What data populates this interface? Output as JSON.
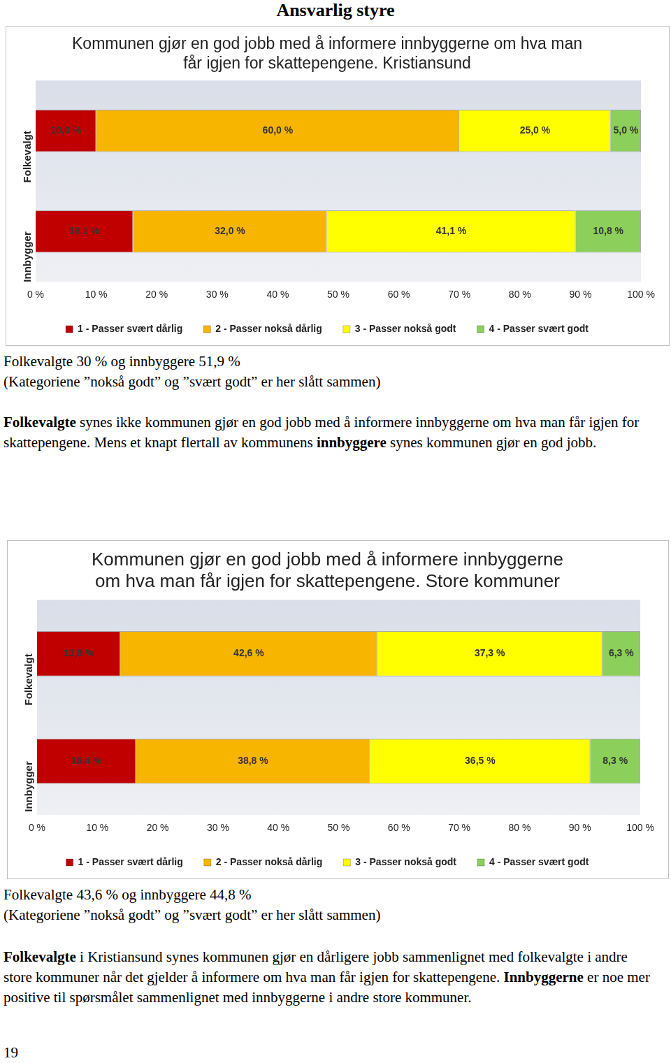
{
  "header": "Ansvarlig styre",
  "chart_data": [
    {
      "type": "bar",
      "orientation": "horizontal",
      "stacked": true,
      "data_labels": true,
      "legend": "bottom",
      "grid": false,
      "title": [
        "Kommunen gjør en god jobb med å informere innbyggerne om hva man",
        "får igjen for skattepengene. Kristiansund"
      ],
      "categories": [
        "Folkevalgt",
        "Innbygger"
      ],
      "xlim": [
        0,
        100
      ],
      "xticks": [
        {
          "value": 0,
          "label": "0 %"
        },
        {
          "value": 10,
          "label": "10 %"
        },
        {
          "value": 20,
          "label": "20 %"
        },
        {
          "value": 30,
          "label": "30 %"
        },
        {
          "value": 40,
          "label": "40 %"
        },
        {
          "value": 50,
          "label": "50 %"
        },
        {
          "value": 60,
          "label": "60 %"
        },
        {
          "value": 70,
          "label": "70 %"
        },
        {
          "value": 80,
          "label": "80 %"
        },
        {
          "value": 90,
          "label": "90 %"
        },
        {
          "value": 100,
          "label": "100 %"
        }
      ],
      "series": [
        {
          "name": "1 - Passer svært dårlig",
          "color": "#c00000",
          "values": [
            10.0,
            16.1
          ],
          "value_labels": [
            "10,0 %",
            "16,1 %"
          ]
        },
        {
          "name": "2 - Passer nokså dårlig",
          "color": "#f7b500",
          "values": [
            60.0,
            32.0
          ],
          "value_labels": [
            "60,0 %",
            "32,0 %"
          ]
        },
        {
          "name": "3 - Passer nokså godt",
          "color": "#ffff00",
          "values": [
            25.0,
            41.1
          ],
          "value_labels": [
            "25,0 %",
            "41,1 %"
          ]
        },
        {
          "name": "4 - Passer svært godt",
          "color": "#8ccf5a",
          "values": [
            5.0,
            10.8
          ],
          "value_labels": [
            "5,0 %",
            "10,8 %"
          ]
        }
      ]
    },
    {
      "type": "bar",
      "orientation": "horizontal",
      "stacked": true,
      "data_labels": true,
      "legend": "bottom",
      "grid": false,
      "title": [
        "Kommunen gjør en god jobb med å informere innbyggerne",
        "om hva man får igjen for skattepengene. Store kommuner"
      ],
      "categories": [
        "Folkevalgt",
        "Innbygger"
      ],
      "xlim": [
        0,
        100
      ],
      "xticks": [
        {
          "value": 0,
          "label": "0 %"
        },
        {
          "value": 10,
          "label": "10 %"
        },
        {
          "value": 20,
          "label": "20 %"
        },
        {
          "value": 30,
          "label": "30 %"
        },
        {
          "value": 40,
          "label": "40 %"
        },
        {
          "value": 50,
          "label": "50 %"
        },
        {
          "value": 60,
          "label": "60 %"
        },
        {
          "value": 70,
          "label": "70 %"
        },
        {
          "value": 80,
          "label": "80 %"
        },
        {
          "value": 90,
          "label": "90 %"
        },
        {
          "value": 100,
          "label": "100 %"
        }
      ],
      "series": [
        {
          "name": "1 - Passer svært dårlig",
          "color": "#c00000",
          "values": [
            13.8,
            16.4
          ],
          "value_labels": [
            "13,8 %",
            "16,4 %"
          ]
        },
        {
          "name": "2 - Passer nokså dårlig",
          "color": "#f7b500",
          "values": [
            42.6,
            38.8
          ],
          "value_labels": [
            "42,6 %",
            "38,8 %"
          ]
        },
        {
          "name": "3 - Passer nokså godt",
          "color": "#ffff00",
          "values": [
            37.3,
            36.5
          ],
          "value_labels": [
            "37,3 %",
            "36,5 %"
          ]
        },
        {
          "name": "4 - Passer svært godt",
          "color": "#8ccf5a",
          "values": [
            6.3,
            8.3
          ],
          "value_labels": [
            "6,3 %",
            "8,3 %"
          ]
        }
      ]
    }
  ],
  "sections": [
    {
      "summary": [
        "Folkevalgte 30 % og innbyggere 51,9 %",
        "(Kategoriene ”nokså godt” og ”svært godt” er her slått sammen)"
      ],
      "comment": [
        {
          "text": "Folkevalgte",
          "bold": true
        },
        {
          "text": " synes ikke kommunen gjør en god jobb med å informere innbyggerne om hva man får igjen for skattepengene. Mens et knapt flertall av kommunens "
        },
        {
          "text": "innbyggere",
          "bold": true
        },
        {
          "text": " synes kommunen gjør en god jobb."
        }
      ]
    },
    {
      "summary": [
        "Folkevalgte 43,6 % og innbyggere 44,8 %",
        "(Kategoriene ”nokså godt” og ”svært godt” er her slått sammen)"
      ],
      "comment": [
        {
          "text": "Folkevalgte",
          "bold": true
        },
        {
          "text": " i Kristiansund synes kommunen gjør en dårligere jobb sammenlignet med folkevalgte i andre store kommuner når det gjelder å informere om hva man får igjen for skattepengene. "
        },
        {
          "text": "Innbyggerne",
          "bold": true
        },
        {
          "text": " er noe mer positive til spørsmålet sammenlignet med innbyggerne i andre store kommuner."
        }
      ]
    }
  ],
  "page_number": 19
}
